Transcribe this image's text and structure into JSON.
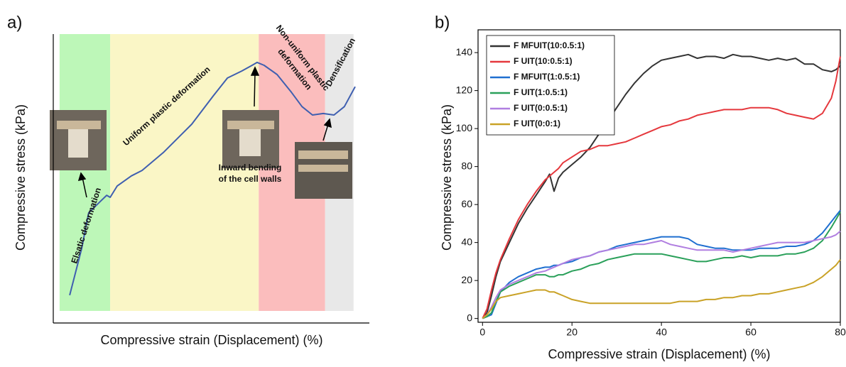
{
  "chart_data": [
    {
      "type": "line",
      "label": "a)",
      "x_label": "Compressive strain (Displacement) (%)",
      "y_label": "Compressive stress (kPa)",
      "xlim": [
        0,
        100
      ],
      "ylim": [
        0,
        100
      ],
      "x": [
        5.2,
        6.7,
        9.0,
        11.2,
        14.6,
        16.9,
        18.0,
        20.2,
        24.7,
        28.1,
        34.8,
        43.8,
        50.6,
        55.1,
        59.6,
        62.9,
        64.5,
        66.7,
        70.8,
        75.3,
        78.7,
        82.0,
        85.4,
        88.8,
        92.1,
        95.5
      ],
      "values": [
        9.6,
        16.0,
        25.8,
        38.1,
        41.8,
        44.2,
        43.5,
        47.4,
        50.9,
        52.8,
        59.0,
        68.8,
        78.6,
        84.8,
        87.2,
        89.2,
        90.2,
        89.2,
        86.0,
        79.9,
        74.9,
        72.0,
        72.5,
        72.0,
        74.9,
        81.8
      ],
      "color": "#3f5fb0",
      "regions": [
        {
          "start": 2,
          "end": 18,
          "color": "#bdf7b8"
        },
        {
          "start": 18,
          "end": 65,
          "color": "#faf6c6"
        },
        {
          "start": 65,
          "end": 86,
          "color": "#fbbdbd"
        },
        {
          "start": 86,
          "end": 95,
          "color": "#e8e8e8"
        }
      ],
      "annotations": [
        {
          "lines": [
            "Elsatic deformation"
          ]
        },
        {
          "lines": [
            "Uniform plastic deformation"
          ]
        },
        {
          "lines": [
            "Non-uniform plastic",
            "deformation"
          ]
        },
        {
          "lines": [
            "Densification"
          ]
        },
        {
          "lines": [
            "Inward bending",
            "of the cell walls"
          ]
        }
      ]
    },
    {
      "type": "line",
      "label": "b)",
      "x_label": "Compressive strain (Displacement) (%)",
      "y_label": "Compressive stress (kPa)",
      "xlim": [
        -1,
        80
      ],
      "ylim": [
        -2,
        152
      ],
      "xticks": [
        0,
        20,
        40,
        60,
        80
      ],
      "yticks": [
        0,
        20,
        40,
        60,
        80,
        100,
        120,
        140
      ],
      "legend": "top-left",
      "x": [
        0,
        1,
        2,
        3,
        4,
        6,
        8,
        10,
        12,
        14,
        15,
        16,
        17,
        18,
        20,
        22,
        24,
        26,
        28,
        30,
        32,
        34,
        36,
        38,
        40,
        42,
        44,
        46,
        48,
        50,
        52,
        54,
        56,
        58,
        60,
        62,
        64,
        66,
        68,
        70,
        72,
        74,
        76,
        78,
        79,
        80
      ],
      "series": [
        {
          "name": "F MFUIT(10:0.5:1)",
          "color": "#333333",
          "values": [
            0,
            3,
            12,
            22,
            30,
            40,
            50,
            58,
            65,
            72,
            76,
            67,
            74,
            77,
            81,
            85,
            90,
            97,
            104,
            111,
            118,
            124,
            129,
            133,
            136,
            137,
            138,
            139,
            137,
            138,
            138,
            137,
            139,
            138,
            138,
            137,
            136,
            137,
            136,
            137,
            134,
            134,
            131,
            130,
            131,
            133
          ]
        },
        {
          "name": "F UIT(10:0.5:1)",
          "color": "#e5383d",
          "values": [
            0,
            5,
            15,
            24,
            31,
            42,
            52,
            60,
            67,
            73,
            75,
            77,
            79,
            82,
            85,
            88,
            89,
            91,
            91,
            92,
            93,
            95,
            97,
            99,
            101,
            102,
            104,
            105,
            107,
            108,
            109,
            110,
            110,
            110,
            111,
            111,
            111,
            110,
            108,
            107,
            106,
            105,
            108,
            116,
            125,
            138
          ]
        },
        {
          "name": "F MFUIT(1:0.5:1)",
          "color": "#1f6fd0",
          "values": [
            0,
            1,
            2,
            8,
            14,
            19,
            22,
            24,
            26,
            27,
            27,
            28,
            28,
            29,
            30,
            32,
            33,
            35,
            36,
            38,
            39,
            40,
            41,
            42,
            43,
            43,
            43,
            42,
            39,
            38,
            37,
            37,
            36,
            36,
            36,
            37,
            37,
            37,
            38,
            38,
            39,
            41,
            45,
            51,
            54,
            57
          ]
        },
        {
          "name": "F UIT(1:0.5:1)",
          "color": "#2aa05a",
          "values": [
            0,
            1,
            3,
            9,
            14,
            17,
            19,
            21,
            23,
            23,
            22,
            22,
            23,
            23,
            25,
            26,
            28,
            29,
            31,
            32,
            33,
            34,
            34,
            34,
            34,
            33,
            32,
            31,
            30,
            30,
            31,
            32,
            32,
            33,
            32,
            33,
            33,
            33,
            34,
            34,
            35,
            37,
            41,
            48,
            52,
            56
          ]
        },
        {
          "name": "F UIT(0:0.5:1)",
          "color": "#b07ee0",
          "values": [
            0,
            2,
            6,
            11,
            15,
            18,
            20,
            22,
            24,
            25,
            26,
            27,
            28,
            29,
            31,
            32,
            33,
            35,
            36,
            37,
            38,
            39,
            39,
            40,
            41,
            39,
            38,
            37,
            36,
            36,
            36,
            36,
            35,
            36,
            37,
            38,
            39,
            40,
            40,
            40,
            40,
            41,
            42,
            43,
            44,
            46
          ]
        },
        {
          "name": "F UIT(0:0:1)",
          "color": "#c9a227",
          "values": [
            0,
            2,
            5,
            9,
            11,
            12,
            13,
            14,
            15,
            15,
            14,
            14,
            13,
            12,
            10,
            9,
            8,
            8,
            8,
            8,
            8,
            8,
            8,
            8,
            8,
            8,
            9,
            9,
            9,
            10,
            10,
            11,
            11,
            12,
            12,
            13,
            13,
            14,
            15,
            16,
            17,
            19,
            22,
            26,
            28,
            31
          ]
        }
      ]
    }
  ]
}
